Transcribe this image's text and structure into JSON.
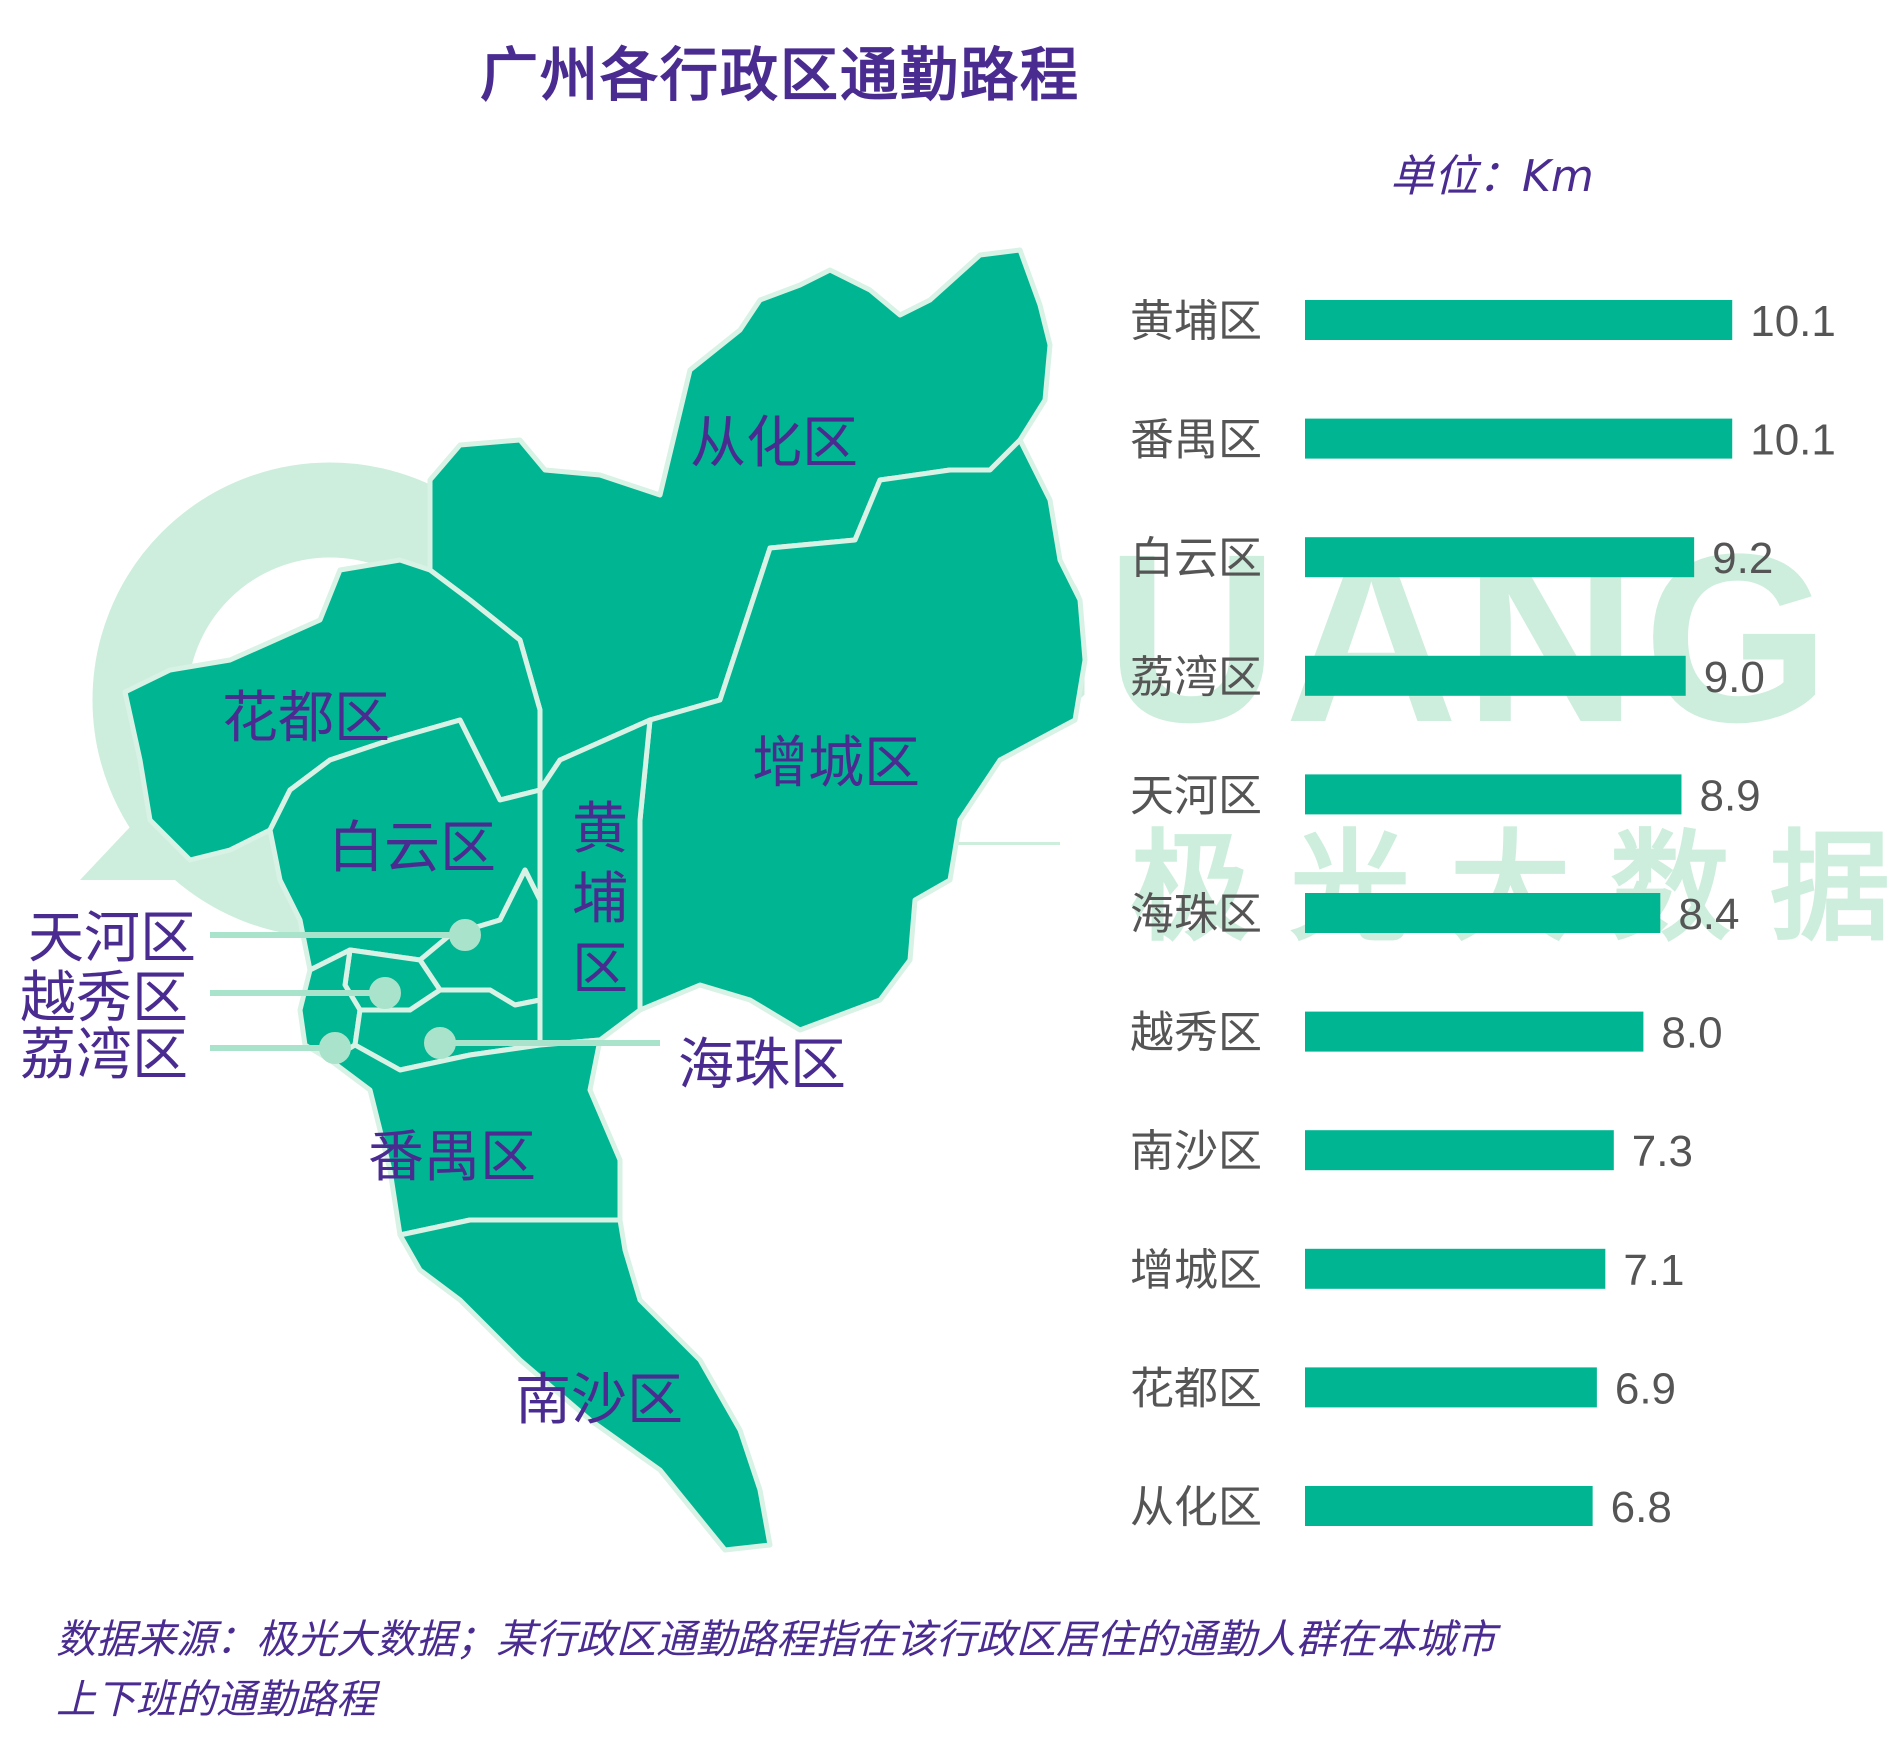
{
  "title": "广州各行政区通勤路程",
  "unit_label": "单位：Km",
  "watermark": {
    "brand_text": "IGUANG",
    "brand_cn": "极光大数据"
  },
  "map": {
    "labels": {
      "conghua": "从化区",
      "huadu": "花都区",
      "zengcheng": "增城区",
      "baiyun": "白云区",
      "huangpu": "黄埔区",
      "tianhe": "天河区",
      "yuexiu": "越秀区",
      "liwan": "荔湾区",
      "haizhu": "海珠区",
      "panyu": "番禺区",
      "nansha": "南沙区"
    },
    "colors": {
      "fill": "#00b592",
      "border": "#d8f2e6",
      "callout": "#a9e3cb",
      "label": "#4a2c91"
    }
  },
  "chart_data": {
    "type": "bar",
    "orientation": "horizontal",
    "title": "广州各行政区通勤路程",
    "unit": "Km",
    "categories": [
      "黄埔区",
      "番禺区",
      "白云区",
      "荔湾区",
      "天河区",
      "海珠区",
      "越秀区",
      "南沙区",
      "增城区",
      "花都区",
      "从化区"
    ],
    "values": [
      10.1,
      10.1,
      9.2,
      9.0,
      8.9,
      8.4,
      8.0,
      7.3,
      7.1,
      6.9,
      6.8
    ],
    "value_labels": [
      "10.1",
      "10.1",
      "9.2",
      "9.0",
      "8.9",
      "8.4",
      "8.0",
      "7.3",
      "7.1",
      "6.9",
      "6.8"
    ],
    "bar_color": "#00b592",
    "category_color": "#555555",
    "value_color": "#555555"
  },
  "footnote": {
    "line1": "数据来源：极光大数据；某行政区通勤路程指在该行政区居住的通勤人群在本城市",
    "line2": "上下班的通勤路程"
  }
}
